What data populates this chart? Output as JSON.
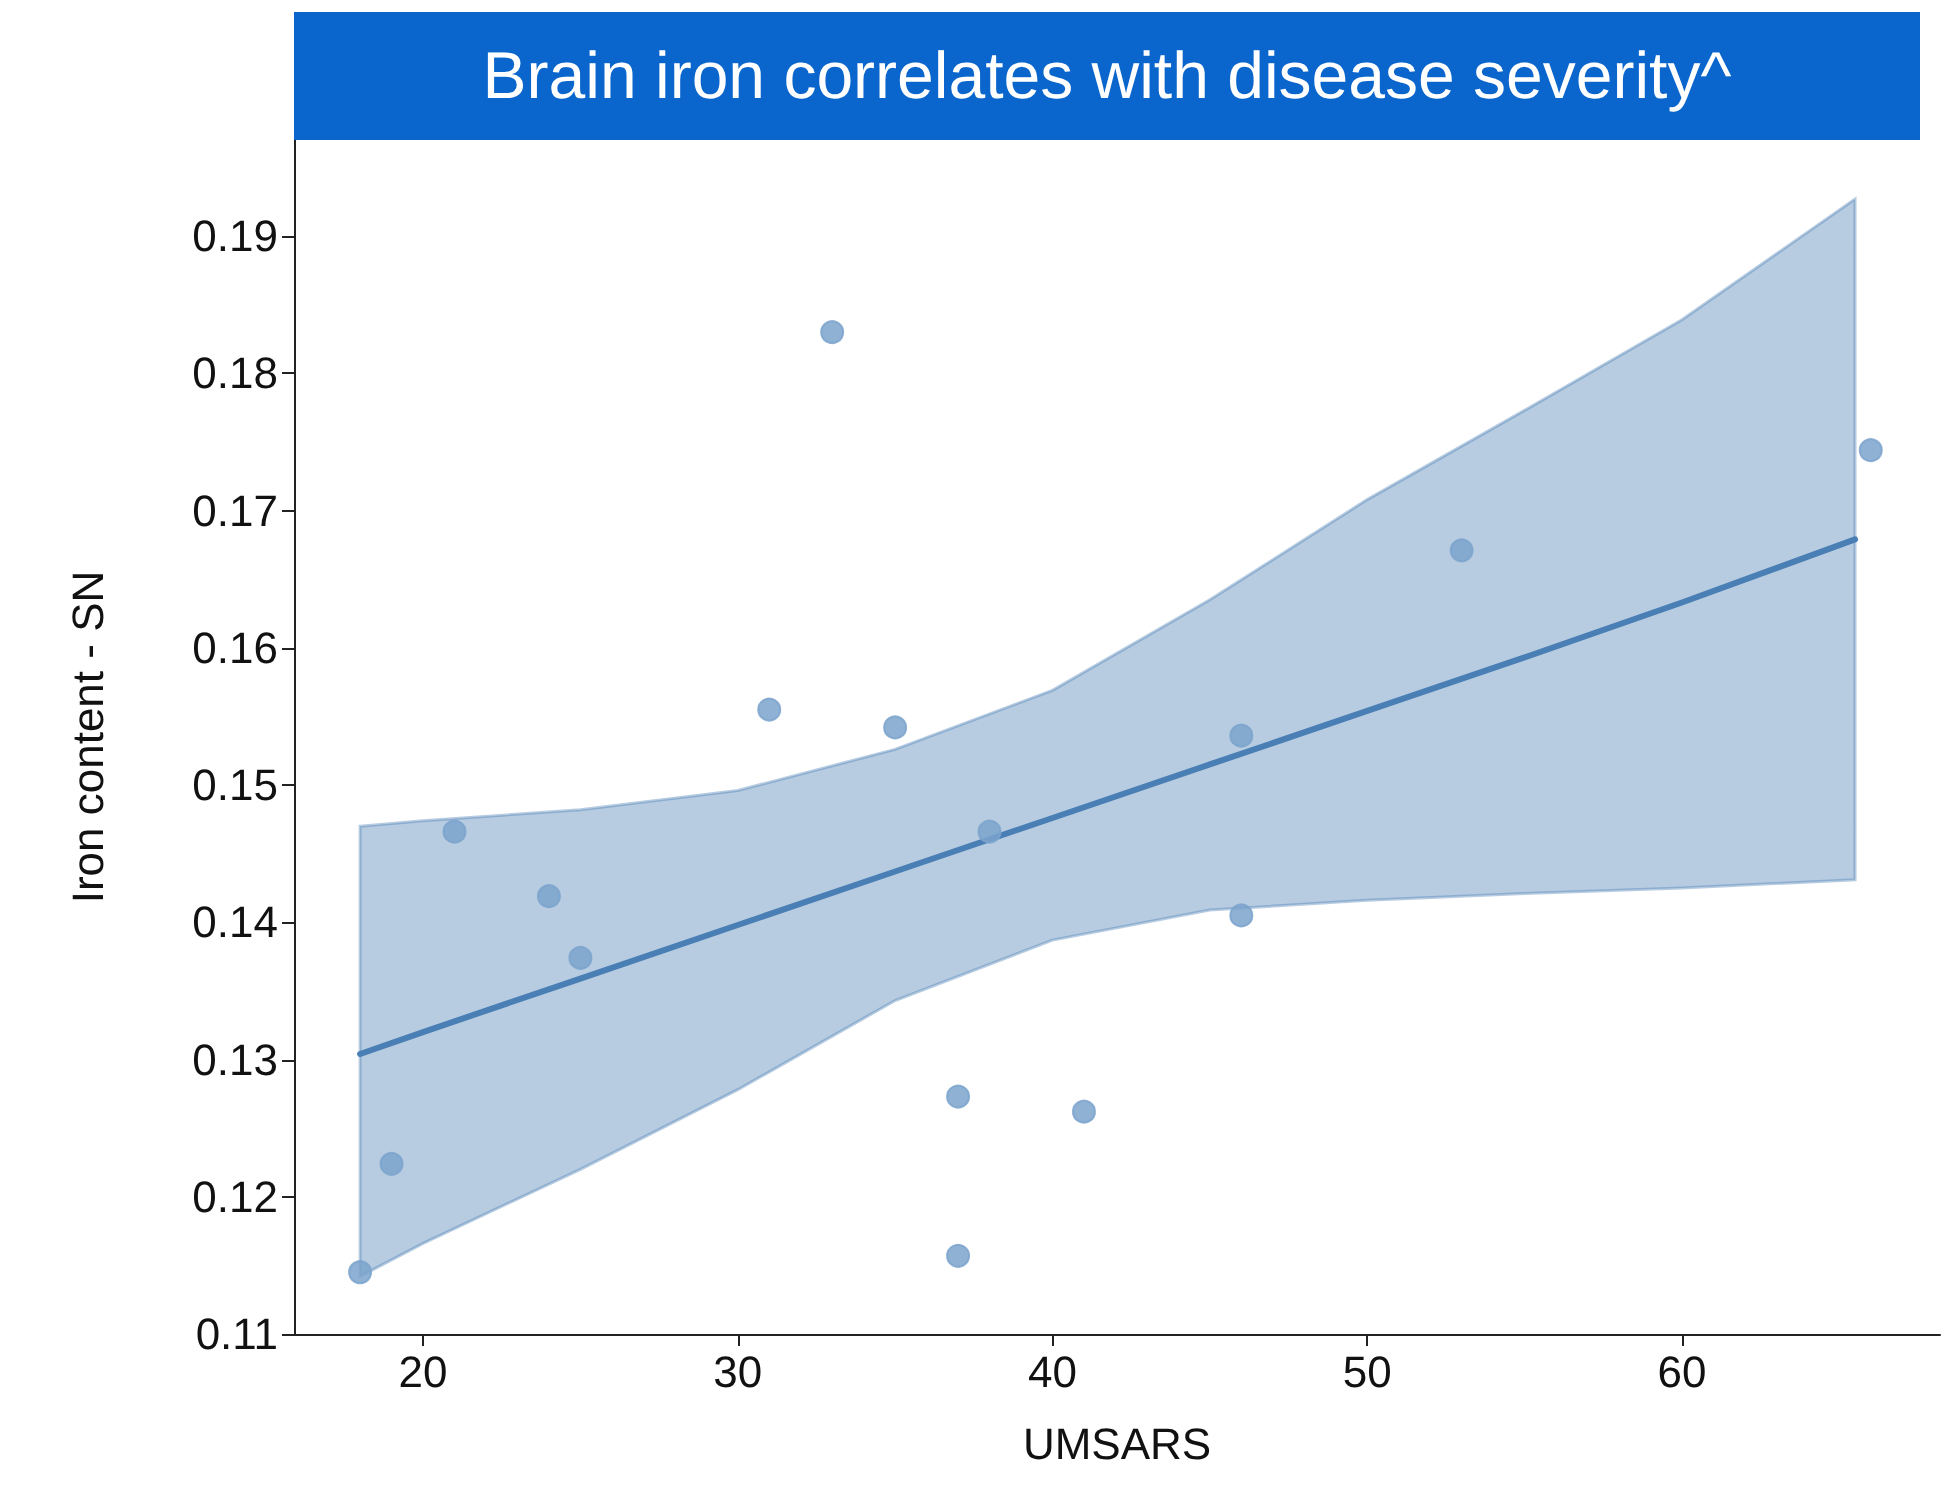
{
  "chart_data": {
    "type": "scatter",
    "title": "Brain iron correlates with disease severity^",
    "xlabel": "UMSARS",
    "ylabel": "Iron content - SN",
    "xlim": [
      15.9,
      68.2
    ],
    "xticks": [
      20,
      30,
      40,
      50,
      60
    ],
    "ylim": [
      0.11,
      0.197
    ],
    "yticks": [
      0.11,
      0.12,
      0.13,
      0.14,
      0.15,
      0.16,
      0.17,
      0.18,
      0.19
    ],
    "grid": false,
    "series": [
      {
        "marker": "circle",
        "color": "#7ba3cc",
        "x": [
          18,
          19,
          21,
          24,
          25,
          31,
          33,
          35,
          37,
          37,
          38,
          41,
          46,
          46,
          53,
          66
        ],
        "values": [
          0.1145,
          0.1224,
          0.1466,
          0.1419,
          0.1374,
          0.1555,
          0.183,
          0.1542,
          0.1273,
          0.1157,
          0.1466,
          0.1262,
          0.1536,
          0.1405,
          0.1671,
          0.1744
        ]
      },
      {
        "type": "line",
        "marker": "none",
        "color": "#4a7fb5",
        "line_style": "solid",
        "x": [
          18,
          20,
          25,
          30,
          35,
          40,
          45,
          50,
          55,
          60,
          65.5
        ],
        "values": [
          0.1304,
          0.132,
          0.1359,
          0.1398,
          0.1437,
          0.1476,
          0.1515,
          0.1554,
          0.1593,
          0.1633,
          0.1679
        ],
        "lower": [
          0.1142,
          0.1166,
          0.122,
          0.1278,
          0.1343,
          0.1387,
          0.1409,
          0.1416,
          0.1421,
          0.1425,
          0.1431
        ],
        "upper": [
          0.147,
          0.1474,
          0.1482,
          0.1496,
          0.1526,
          0.1569,
          0.1635,
          0.1708,
          0.1773,
          0.1839,
          0.1927
        ]
      }
    ]
  }
}
